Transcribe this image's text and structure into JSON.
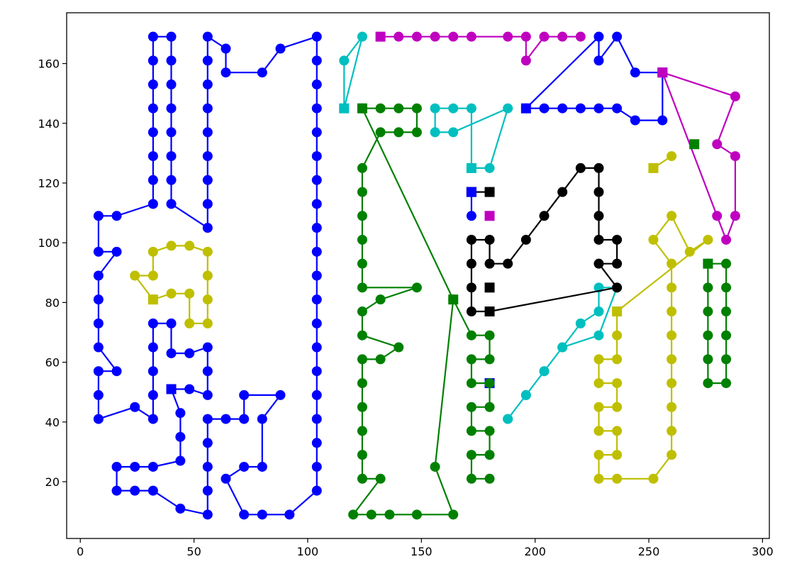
{
  "chart_data": {
    "type": "line",
    "xlim": [
      -6,
      303
    ],
    "ylim": [
      1,
      177
    ],
    "xticks": [
      0,
      50,
      100,
      150,
      200,
      250,
      300
    ],
    "yticks": [
      20,
      40,
      60,
      80,
      100,
      120,
      140,
      160
    ],
    "series": [
      {
        "color": "#0000ff",
        "square_points": [
          0
        ],
        "x": [
          40,
          48,
          56,
          56,
          56,
          48,
          40,
          40,
          32,
          32,
          32,
          32,
          32,
          24,
          8,
          8,
          8,
          16,
          8,
          8,
          8,
          8,
          16,
          8,
          8,
          16,
          32,
          32,
          32,
          32,
          32,
          32,
          32,
          32,
          40,
          40,
          40,
          40,
          40,
          40,
          40,
          40,
          56,
          56,
          56,
          56,
          56,
          56,
          56,
          56,
          56,
          64,
          64,
          80,
          88,
          104,
          104,
          104,
          104,
          104,
          104,
          104,
          104,
          104,
          104,
          104,
          104,
          104,
          104,
          104,
          104,
          104,
          104,
          104,
          104,
          92,
          80,
          72,
          64,
          72,
          80,
          80,
          88,
          72,
          72,
          64,
          56,
          56,
          56,
          56,
          56,
          44,
          32,
          24,
          16,
          16,
          24,
          32,
          44,
          44,
          44,
          40
        ],
        "y": [
          51,
          51,
          49,
          57,
          65,
          63,
          63,
          73,
          73,
          65,
          57,
          49,
          41,
          45,
          41,
          49,
          57,
          57,
          65,
          73,
          81,
          89,
          97,
          97,
          109,
          109,
          113,
          121,
          129,
          137,
          145,
          153,
          161,
          169,
          169,
          161,
          153,
          145,
          137,
          129,
          121,
          113,
          105,
          113,
          121,
          129,
          137,
          145,
          153,
          161,
          169,
          165,
          157,
          157,
          165,
          169,
          161,
          153,
          145,
          137,
          129,
          121,
          113,
          105,
          97,
          89,
          81,
          73,
          65,
          57,
          49,
          41,
          33,
          25,
          17,
          9,
          9,
          9,
          21,
          25,
          25,
          41,
          49,
          49,
          41,
          41,
          41,
          33,
          25,
          17,
          9,
          11,
          17,
          17,
          17,
          25,
          25,
          25,
          27,
          35,
          43,
          51
        ]
      },
      {
        "color": "#0000ff",
        "square_points": [
          0,
          8
        ],
        "x": [
          196,
          204,
          212,
          220,
          228,
          236,
          244,
          256,
          256,
          244,
          236,
          228,
          228,
          196
        ],
        "y": [
          145,
          145,
          145,
          145,
          145,
          145,
          141,
          141,
          157,
          157,
          169,
          161,
          169,
          145
        ]
      },
      {
        "color": "#0000ff",
        "square_points": [
          0
        ],
        "x": [
          180
        ],
        "y": [
          53
        ]
      },
      {
        "color": "#bf00bf",
        "square_points": [
          0
        ],
        "x": [
          132,
          140,
          148,
          156,
          164,
          172,
          188,
          196,
          196,
          204,
          212,
          220
        ],
        "y": [
          169,
          169,
          169,
          169,
          169,
          169,
          169,
          169,
          161,
          169,
          169,
          169
        ]
      },
      {
        "color": "#bf00bf",
        "square_points": [
          0
        ],
        "x": [
          256,
          288,
          280,
          288,
          288,
          284,
          280,
          256
        ],
        "y": [
          157,
          149,
          133,
          129,
          109,
          101,
          109,
          157
        ]
      },
      {
        "color": "#bf00bf",
        "square_points": [
          0
        ],
        "x": [
          180
        ],
        "y": [
          109
        ]
      },
      {
        "color": "#00bfbf",
        "square_points": [
          0
        ],
        "x": [
          116,
          116,
          124,
          116
        ],
        "y": [
          145,
          161,
          169,
          145
        ]
      },
      {
        "color": "#00bfbf",
        "square_points": [
          0
        ],
        "x": [
          172,
          180,
          188,
          164,
          156,
          156,
          164,
          172,
          172
        ],
        "y": [
          125,
          125,
          145,
          137,
          137,
          145,
          145,
          145,
          125
        ]
      },
      {
        "color": "#00bfbf",
        "square_points": [],
        "x": [
          188,
          196,
          204,
          212,
          220,
          228,
          228,
          236,
          228,
          212,
          204,
          196,
          188
        ],
        "y": [
          41,
          49,
          57,
          65,
          73,
          77,
          85,
          85,
          69,
          65,
          57,
          49,
          41
        ]
      },
      {
        "color": "#008000",
        "square_points": [
          0
        ],
        "x": [
          124,
          132,
          140,
          148,
          148,
          140,
          132,
          124,
          124,
          124,
          124,
          124,
          124,
          148,
          132,
          124,
          124,
          140,
          132,
          124,
          124,
          124,
          124,
          124,
          124,
          132,
          120,
          128,
          136,
          148,
          164,
          156,
          164
        ],
        "y": [
          145,
          145,
          145,
          145,
          137,
          137,
          137,
          125,
          117,
          109,
          101,
          93,
          85,
          85,
          81,
          77,
          69,
          65,
          61,
          61,
          53,
          45,
          37,
          29,
          21,
          21,
          9,
          9,
          9,
          9,
          9,
          25,
          81
        ]
      },
      {
        "color": "#008000",
        "square_points": [
          1
        ],
        "x": [
          124,
          164,
          172,
          180,
          180,
          172,
          172,
          180,
          180,
          172,
          172,
          180,
          180,
          172,
          172,
          180
        ],
        "y": [
          145,
          81,
          69,
          69,
          61,
          61,
          53,
          53,
          45,
          45,
          37,
          37,
          29,
          29,
          21,
          21
        ]
      },
      {
        "color": "#008000",
        "square_points": [
          0
        ],
        "x": [
          276,
          284,
          284,
          284,
          284,
          284,
          284,
          276,
          276,
          276,
          276,
          276,
          276
        ],
        "y": [
          93,
          93,
          85,
          77,
          69,
          61,
          53,
          53,
          61,
          69,
          77,
          85,
          93
        ]
      },
      {
        "color": "#008000",
        "square_points": [
          0
        ],
        "x": [
          270
        ],
        "y": [
          133
        ]
      },
      {
        "color": "#bfbf00",
        "square_points": [
          0
        ],
        "x": [
          32,
          24,
          32,
          32,
          40,
          48,
          56,
          56,
          56,
          56,
          48,
          48,
          40,
          32
        ],
        "y": [
          81,
          89,
          89,
          97,
          99,
          99,
          97,
          89,
          81,
          73,
          73,
          83,
          83,
          81
        ]
      },
      {
        "color": "#bfbf00",
        "square_points": [
          0
        ],
        "x": [
          236,
          236,
          236,
          228,
          228,
          236,
          236,
          228,
          228,
          236,
          236,
          228,
          228,
          236,
          252,
          260,
          260,
          260,
          260,
          260,
          260,
          260,
          260,
          260,
          252,
          260,
          268,
          276,
          236
        ],
        "y": [
          77,
          69,
          61,
          61,
          53,
          53,
          45,
          45,
          37,
          37,
          29,
          29,
          21,
          21,
          21,
          29,
          37,
          45,
          53,
          61,
          69,
          77,
          85,
          93,
          101,
          109,
          97,
          101,
          77
        ]
      },
      {
        "color": "#bfbf00",
        "square_points": [
          0
        ],
        "x": [
          252,
          260
        ],
        "y": [
          125,
          129
        ]
      },
      {
        "color": "#000000",
        "square_points": [
          0
        ],
        "x": [
          180,
          172,
          172,
          172,
          172,
          180,
          180,
          188,
          196,
          204,
          212,
          220,
          228,
          228,
          228,
          228,
          236,
          236,
          228,
          236,
          180
        ],
        "y": [
          77,
          77,
          85,
          93,
          101,
          101,
          93,
          93,
          101,
          109,
          117,
          125,
          125,
          117,
          109,
          101,
          101,
          93,
          93,
          85,
          77
        ]
      },
      {
        "color": "#000000",
        "square_points": [
          0
        ],
        "x": [
          180
        ],
        "y": [
          85
        ]
      },
      {
        "color": "#000000",
        "square_points": [
          0,
          1
        ],
        "x": [
          172,
          180
        ],
        "y": [
          117,
          117
        ]
      },
      {
        "color": "#0000ff",
        "square_points": [
          0
        ],
        "x": [
          172,
          172
        ],
        "y": [
          117,
          109
        ]
      }
    ]
  }
}
